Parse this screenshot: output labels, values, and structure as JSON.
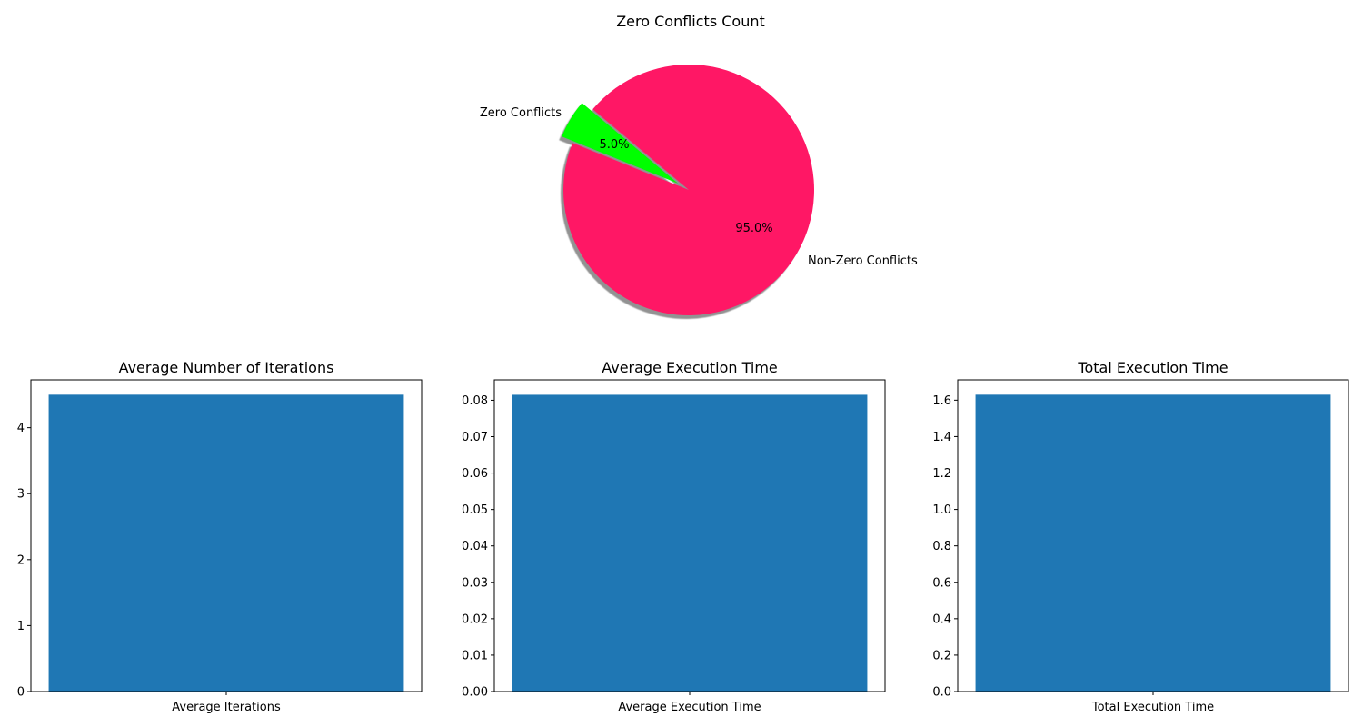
{
  "chart_data": [
    {
      "type": "pie",
      "title": "Zero Conflicts Count",
      "labels": [
        "Zero Conflicts",
        "Non-Zero Conflicts"
      ],
      "values": [
        5.0,
        95.0
      ],
      "pct_labels": [
        "5.0%",
        "95.0%"
      ],
      "colors": [
        "#00ff00",
        "#ff1765"
      ],
      "explode": [
        0.1,
        0
      ],
      "shadow": true,
      "start_angle_deg": 140
    },
    {
      "type": "bar",
      "title": "Average Number of Iterations",
      "categories": [
        "Average Iterations"
      ],
      "values": [
        4.5
      ],
      "ylim": [
        0,
        4.725
      ],
      "yticks": [
        0,
        1,
        2,
        3,
        4
      ],
      "ytick_labels": [
        "0",
        "1",
        "2",
        "3",
        "4"
      ],
      "color": "#1f77b4"
    },
    {
      "type": "bar",
      "title": "Average Execution Time",
      "categories": [
        "Average Execution Time"
      ],
      "values": [
        0.0815
      ],
      "ylim": [
        0,
        0.0856
      ],
      "yticks": [
        0,
        0.01,
        0.02,
        0.03,
        0.04,
        0.05,
        0.06,
        0.07,
        0.08
      ],
      "ytick_labels": [
        "0.00",
        "0.01",
        "0.02",
        "0.03",
        "0.04",
        "0.05",
        "0.06",
        "0.07",
        "0.08"
      ],
      "color": "#1f77b4"
    },
    {
      "type": "bar",
      "title": "Total Execution Time",
      "categories": [
        "Total Execution Time"
      ],
      "values": [
        1.63
      ],
      "ylim": [
        0,
        1.7115
      ],
      "yticks": [
        0,
        0.2,
        0.4,
        0.6,
        0.8,
        1.0,
        1.2,
        1.4,
        1.6
      ],
      "ytick_labels": [
        "0.0",
        "0.2",
        "0.4",
        "0.6",
        "0.8",
        "1.0",
        "1.2",
        "1.4",
        "1.6"
      ],
      "color": "#1f77b4"
    }
  ]
}
